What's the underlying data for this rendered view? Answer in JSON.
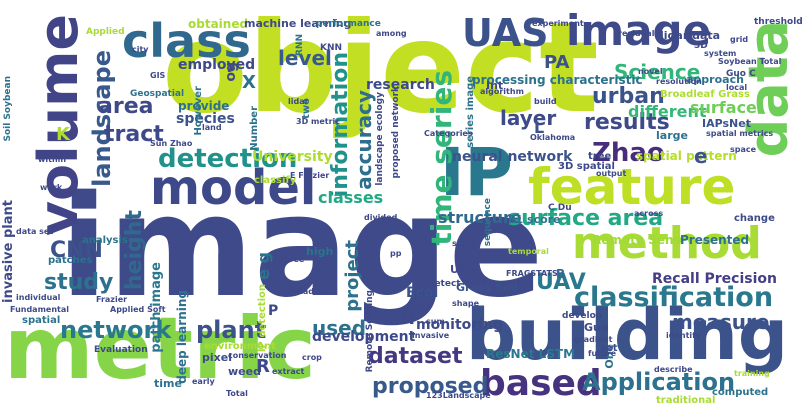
{
  "words": [
    {
      "text": "image",
      "color": "#3e4a89"
    },
    {
      "text": "object",
      "color": "#c2df23"
    },
    {
      "text": "metric",
      "color": "#86d549"
    },
    {
      "text": "building",
      "color": "#3b528b"
    },
    {
      "text": "model",
      "color": "#3e4989"
    },
    {
      "text": "feature",
      "color": "#bddf26"
    },
    {
      "text": "method",
      "color": "#a8db34"
    },
    {
      "text": "volume",
      "color": "#414487"
    },
    {
      "text": "IP",
      "color": "#2a788e"
    },
    {
      "text": "data",
      "color": "#6ece58"
    },
    {
      "text": "class",
      "color": "#31688e"
    },
    {
      "text": "UAS",
      "color": "#3b528b"
    },
    {
      "text": "image",
      "color": "#3e4a89"
    },
    {
      "text": "classification",
      "color": "#2a788e"
    },
    {
      "text": "based",
      "color": "#46327e"
    },
    {
      "text": "Application",
      "color": "#2c728e"
    },
    {
      "text": "detection",
      "color": "#21918c"
    },
    {
      "text": "surface area",
      "color": "#22a884"
    },
    {
      "text": "network",
      "color": "#2a788e"
    },
    {
      "text": "plant",
      "color": "#3b528b"
    },
    {
      "text": "proposed",
      "color": "#38598c"
    },
    {
      "text": "time series",
      "color": "#31b57b"
    },
    {
      "text": "landscape",
      "color": "#38598c"
    },
    {
      "text": "Zhao",
      "color": "#472d7b"
    },
    {
      "text": "measure",
      "color": "#3b528b"
    },
    {
      "text": "results",
      "color": "#3e4989"
    },
    {
      "text": "dataset",
      "color": "#453882"
    },
    {
      "text": "study",
      "color": "#2c728e"
    },
    {
      "text": "height",
      "color": "#31688e"
    },
    {
      "text": "urban",
      "color": "#3b528b"
    },
    {
      "text": "layer",
      "color": "#3e4a89"
    },
    {
      "text": "accuracy",
      "color": "#2e6e8e"
    },
    {
      "text": "information",
      "color": "#21918c"
    },
    {
      "text": "tract",
      "color": "#3e4989"
    },
    {
      "text": "area",
      "color": "#3e4989"
    },
    {
      "text": "CNN",
      "color": "#3b528b"
    },
    {
      "text": "UAV",
      "color": "#2a788e"
    },
    {
      "text": "Science",
      "color": "#31b57b"
    },
    {
      "text": "level",
      "color": "#38598c"
    },
    {
      "text": "used",
      "color": "#2c728e"
    },
    {
      "text": "Recall Precision",
      "color": "#433e85"
    },
    {
      "text": "classes",
      "color": "#22a884"
    },
    {
      "text": "project",
      "color": "#2c728e"
    },
    {
      "text": "neural network",
      "color": "#3b528b"
    },
    {
      "text": "development",
      "color": "#3e4989"
    },
    {
      "text": "monitoring",
      "color": "#3e4989"
    },
    {
      "text": "employed",
      "color": "#3e4989"
    },
    {
      "text": "species",
      "color": "#3b528b"
    },
    {
      "text": "different",
      "color": "#35b779"
    },
    {
      "text": "surface",
      "color": "#6ece58"
    },
    {
      "text": "structure",
      "color": "#31688e"
    },
    {
      "text": "Presented",
      "color": "#2c728e"
    },
    {
      "text": "Remote Sens",
      "color": "#a0da39"
    },
    {
      "text": "patch image",
      "color": "#2a788e"
    },
    {
      "text": "invasive plant",
      "color": "#3e4989"
    },
    {
      "text": "research",
      "color": "#3e4989"
    },
    {
      "text": "PA",
      "color": "#3b528b"
    },
    {
      "text": "University",
      "color": "#addc30"
    },
    {
      "text": "provide",
      "color": "#2c728e"
    },
    {
      "text": "ResNet LSTM",
      "color": "#2a788e"
    },
    {
      "text": "Ecol",
      "color": "#3b528b"
    },
    {
      "text": "obtained",
      "color": "#a8db34"
    },
    {
      "text": "machine learning",
      "color": "#3e4989"
    },
    {
      "text": "lidar data",
      "color": "#3e4989"
    },
    {
      "text": "processing characteristic",
      "color": "#2c728e"
    },
    {
      "text": "spatial pattern",
      "color": "#b5de2b"
    },
    {
      "text": "Broadleaf Grass",
      "color": "#addc30"
    },
    {
      "text": "approach",
      "color": "#2c728e"
    },
    {
      "text": "IAPsNet",
      "color": "#3b528b"
    },
    {
      "text": "deep learning",
      "color": "#2c728e"
    },
    {
      "text": "e",
      "color": "#3b528b"
    },
    {
      "text": "F1 score",
      "color": "#2c728e"
    },
    {
      "text": "Grass Soil",
      "color": "#3b528b"
    },
    {
      "text": "H",
      "color": "#3e4989"
    },
    {
      "text": "K",
      "color": "#addc30"
    },
    {
      "text": "L",
      "color": "#3b528b"
    },
    {
      "text": "R",
      "color": "#3e4989"
    },
    {
      "text": "B",
      "color": "#31688e"
    },
    {
      "text": "P",
      "color": "#3e4989"
    },
    {
      "text": "e g",
      "color": "#2c728e"
    },
    {
      "text": "og",
      "color": "#3e4989"
    },
    {
      "text": "X",
      "color": "#2c728e"
    },
    {
      "text": "One",
      "color": "#2c728e"
    },
    {
      "text": "UAS",
      "color": "#3e4989"
    },
    {
      "text": "Int",
      "color": "#3e4989"
    },
    {
      "text": "pixel",
      "color": "#3e4989"
    },
    {
      "text": "weed",
      "color": "#3e4989"
    },
    {
      "text": "time",
      "color": "#2c728e"
    },
    {
      "text": "high",
      "color": "#2c728e"
    },
    {
      "text": "Guo",
      "color": "#3e4989"
    },
    {
      "text": "set",
      "color": "#3e4989"
    },
    {
      "text": "computed",
      "color": "#2c728e"
    },
    {
      "text": "traditional",
      "color": "#a8db34"
    },
    {
      "text": "change",
      "color": "#3e4989"
    },
    {
      "text": "large",
      "color": "#2c728e"
    },
    {
      "text": "However",
      "color": "#2c728e"
    },
    {
      "text": "two",
      "color": "#2c728e"
    },
    {
      "text": "Number",
      "color": "#2c728e"
    },
    {
      "text": "series image",
      "color": "#2c728e"
    },
    {
      "text": "proposed network",
      "color": "#3e4989"
    },
    {
      "text": "landscape ecology",
      "color": "#3e4989"
    },
    {
      "text": "classify",
      "color": "#a8db34"
    },
    {
      "text": "analysis",
      "color": "#2c728e"
    },
    {
      "text": "patches",
      "color": "#2c728e"
    },
    {
      "text": "spatial",
      "color": "#2c728e"
    },
    {
      "text": "Soil Soybean",
      "color": "#2c728e"
    },
    {
      "text": "3D spatial",
      "color": "#3e4989"
    },
    {
      "text": "tree",
      "color": "#3e4989"
    },
    {
      "text": "IP detection",
      "color": "#a8db34"
    },
    {
      "text": "environment",
      "color": "#a8db34"
    },
    {
      "text": "sequence",
      "color": "#2c728e"
    },
    {
      "text": "Remote Sensing",
      "color": "#3e4989"
    },
    {
      "text": "C Du",
      "color": "#3e4989"
    },
    {
      "text": "develop",
      "color": "#3e4989"
    },
    {
      "text": "KNN",
      "color": "#3e4989"
    },
    {
      "text": "RNN",
      "color": "#2c728e"
    },
    {
      "text": "Geospatial",
      "color": "#2c728e"
    },
    {
      "text": "Applied",
      "color": "#a8db34"
    },
    {
      "text": "detect",
      "color": "#3e4989"
    },
    {
      "text": "FRAGSTATS",
      "color": "#3e4989"
    },
    {
      "text": "Evaluation",
      "color": "#3e4989"
    },
    {
      "text": "3D",
      "color": "#3e4989"
    },
    {
      "text": "Guo C",
      "color": "#3e4989"
    },
    {
      "text": "threshold",
      "color": "#3e4989"
    },
    {
      "text": "performance",
      "color": "#2c728e"
    },
    {
      "text": "experiment",
      "color": "#3e4989"
    },
    {
      "text": "among",
      "color": "#3e4989"
    },
    {
      "text": "residual",
      "color": "#3e4989"
    },
    {
      "text": "grid",
      "color": "#3e4989"
    },
    {
      "text": "system",
      "color": "#3e4989"
    },
    {
      "text": "Soybean Total",
      "color": "#3e4989"
    },
    {
      "text": "local",
      "color": "#3e4989"
    },
    {
      "text": "resolution",
      "color": "#3e4989"
    },
    {
      "text": "novel",
      "color": "#3e4989"
    },
    {
      "text": "algorithm",
      "color": "#3e4989"
    },
    {
      "text": "build",
      "color": "#3e4989"
    },
    {
      "text": "Categories",
      "color": "#3e4989"
    },
    {
      "text": "Oklahoma",
      "color": "#3e4989"
    },
    {
      "text": "spatial metrics",
      "color": "#3e4989"
    },
    {
      "text": "space",
      "color": "#3e4989"
    },
    {
      "text": "output",
      "color": "#3e4989"
    },
    {
      "text": "across",
      "color": "#3e4989"
    },
    {
      "text": "scale",
      "color": "#3e4989"
    },
    {
      "text": "temporal",
      "color": "#a8db34"
    },
    {
      "text": "divided",
      "color": "#3e4989"
    },
    {
      "text": "shape",
      "color": "#3e4989"
    },
    {
      "text": "invasive",
      "color": "#3e4989"
    },
    {
      "text": "sum",
      "color": "#3e4989"
    },
    {
      "text": "crop",
      "color": "#3e4989"
    },
    {
      "text": "conservation",
      "color": "#3e4989"
    },
    {
      "text": "extract",
      "color": "#3e4989"
    },
    {
      "text": "early",
      "color": "#3e4989"
    },
    {
      "text": "describe",
      "color": "#3e4989"
    },
    {
      "text": "identify",
      "color": "#3e4989"
    },
    {
      "text": "training",
      "color": "#a8db34"
    },
    {
      "text": "future",
      "color": "#3e4989"
    },
    {
      "text": "gradient",
      "color": "#3e4989"
    },
    {
      "text": "Total",
      "color": "#3e4989"
    },
    {
      "text": "123Landscape",
      "color": "#3e4989"
    },
    {
      "text": "data set",
      "color": "#3e4989"
    },
    {
      "text": "individual",
      "color": "#3e4989"
    },
    {
      "text": "Fundamental",
      "color": "#3e4989"
    },
    {
      "text": "Frazier",
      "color": "#3e4989"
    },
    {
      "text": "Applied Soft",
      "color": "#3e4989"
    },
    {
      "text": "three",
      "color": "#3e4989"
    },
    {
      "text": "pp",
      "color": "#3e4989"
    },
    {
      "text": "3D metric",
      "color": "#3e4989"
    },
    {
      "text": "lidar",
      "color": "#3e4989"
    },
    {
      "text": "land",
      "color": "#3e4989"
    },
    {
      "text": "Sun Zhao",
      "color": "#3e4989"
    },
    {
      "text": "GIS",
      "color": "#3e4989"
    },
    {
      "text": "city",
      "color": "#3e4989"
    },
    {
      "text": "work",
      "color": "#3e4989"
    },
    {
      "text": "within",
      "color": "#3e4989"
    },
    {
      "text": "E Frazier",
      "color": "#3e4989"
    },
    {
      "text": "P Kadron",
      "color": "#3e4989"
    }
  ]
}
